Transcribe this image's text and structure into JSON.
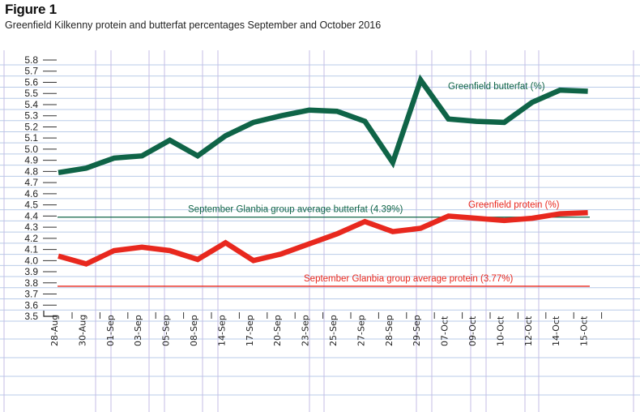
{
  "figure_label": "Figure 1",
  "subtitle": "Greenfield Kilkenny protein and butterfat percentages September and October 2016",
  "chart_data": {
    "type": "line",
    "title": "Greenfield Kilkenny protein and butterfat percentages September and October 2016",
    "xlabel": "",
    "ylabel": "",
    "ylim": [
      3.5,
      5.8
    ],
    "yticks": [
      "5.8",
      "5.7",
      "5.6",
      "5.5",
      "5.4",
      "5.3",
      "5.2",
      "5.1",
      "5.0",
      "4.9",
      "4.8",
      "4.7",
      "4.6",
      "4.5",
      "4.4",
      "4.3",
      "4.2",
      "4.1",
      "4.0",
      "3.9",
      "3.8",
      "3.7",
      "3.6",
      "3.5"
    ],
    "categories": [
      "28-Aug",
      "30-Aug",
      "01-Sep",
      "03-Sep",
      "05-Sep",
      "08-Sep",
      "14-Sep",
      "17-Sep",
      "20-Sep",
      "23-Sep",
      "25-Sep",
      "27-Sep",
      "28-Sep",
      "29-Sep",
      "07-Oct",
      "09-Oct",
      "10-Oct",
      "12-Oct",
      "14-Oct",
      "15-Oct"
    ],
    "series": [
      {
        "name": "Greenfield butterfat (%)",
        "color": "#0f6447",
        "values": [
          4.79,
          4.83,
          4.92,
          4.94,
          5.08,
          4.94,
          5.12,
          5.24,
          5.3,
          5.35,
          5.34,
          5.25,
          4.88,
          5.62,
          5.27,
          5.25,
          5.24,
          5.42,
          5.53,
          5.52
        ]
      },
      {
        "name": "Greenfield protein (%)",
        "color": "#e8281e",
        "values": [
          4.04,
          3.97,
          4.09,
          4.12,
          4.09,
          4.01,
          4.16,
          4.0,
          4.06,
          4.15,
          4.24,
          4.35,
          4.26,
          4.29,
          4.4,
          4.38,
          4.36,
          4.38,
          4.42,
          4.43
        ]
      }
    ],
    "reference_lines": [
      {
        "label": "September Glanbia group average butterfat (4.39%)",
        "value": 4.39,
        "color": "#0f6447"
      },
      {
        "label": "September Glanbia group average protein (3.77%)",
        "value": 3.77,
        "color": "#e8281e"
      }
    ],
    "grid": true,
    "legend": "inline labels"
  }
}
